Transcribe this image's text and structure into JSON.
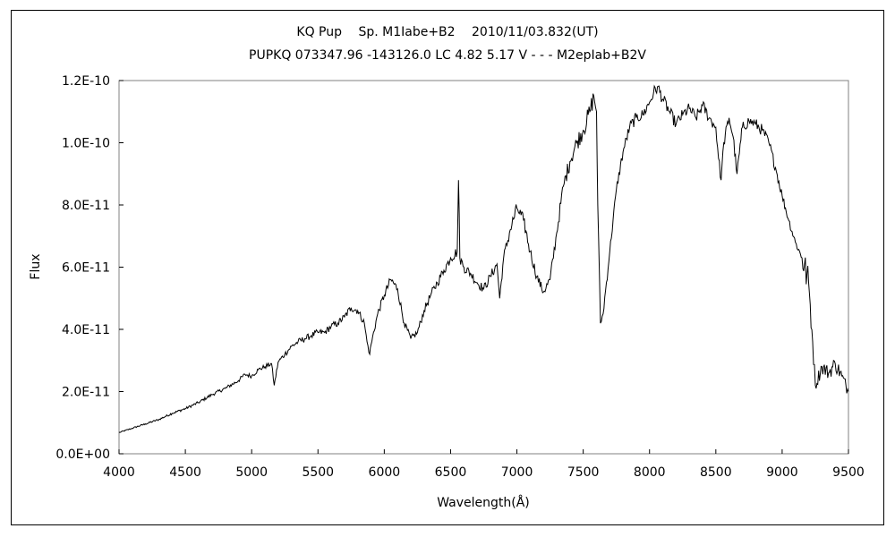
{
  "chart_data": {
    "type": "line",
    "title": "KQ Pup　 Sp. M1Iabe+B2　 2010/11/03.832(UT)",
    "subtitle": "PUPKQ 073347.96 -143126.0 LC 4.82 5.17 V - - - M2epIab+B2V",
    "xlabel": "Wavelength(Å)",
    "ylabel": "Flux",
    "xlim": [
      4000,
      9500
    ],
    "ylim": [
      0,
      1.2e-10
    ],
    "x_ticks": [
      4000,
      4500,
      5000,
      5500,
      6000,
      6500,
      7000,
      7500,
      8000,
      8500,
      9000,
      9500
    ],
    "x_tick_labels": [
      "4000",
      "4500",
      "5000",
      "5500",
      "6000",
      "6500",
      "7000",
      "7500",
      "8000",
      "8500",
      "9000",
      "9500"
    ],
    "y_ticks": [
      0,
      2e-11,
      4e-11,
      6e-11,
      8e-11,
      1e-10,
      1.2e-10
    ],
    "y_tick_labels": [
      "0.0E+00",
      "2.0E-11",
      "4.0E-11",
      "6.0E-11",
      "8.0E-11",
      "1.0E-10",
      "1.2E-10"
    ],
    "grid": false,
    "legend": "none",
    "line_color": "#000000",
    "series": [
      {
        "x": [
          4000,
          4100,
          4200,
          4300,
          4400,
          4500,
          4600,
          4700,
          4800,
          4900,
          4950,
          5000,
          5050,
          5100,
          5150,
          5170,
          5200,
          5250,
          5300,
          5350,
          5400,
          5450,
          5500,
          5550,
          5600,
          5650,
          5700,
          5750,
          5800,
          5850,
          5870,
          5890,
          5900,
          5950,
          6000,
          6050,
          6100,
          6150,
          6200,
          6250,
          6300,
          6350,
          6400,
          6450,
          6500,
          6550,
          6560,
          6570,
          6600,
          6650,
          6700,
          6750,
          6800,
          6850,
          6870,
          6900,
          6950,
          7000,
          7050,
          7100,
          7150,
          7200,
          7250,
          7300,
          7350,
          7400,
          7450,
          7500,
          7550,
          7580,
          7600,
          7610,
          7630,
          7650,
          7700,
          7750,
          7800,
          7850,
          7900,
          7950,
          8000,
          8030,
          8060,
          8100,
          8150,
          8200,
          8250,
          8300,
          8350,
          8400,
          8450,
          8500,
          8520,
          8540,
          8560,
          8600,
          8630,
          8660,
          8700,
          8750,
          8800,
          8850,
          8900,
          8950,
          9000,
          9050,
          9100,
          9150,
          9200,
          9230,
          9250,
          9300,
          9350,
          9400,
          9450,
          9500
        ],
        "values": [
          6.8e-12,
          8.2e-12,
          9.6e-12,
          1.1e-11,
          1.3e-11,
          1.45e-11,
          1.65e-11,
          1.9e-11,
          2.1e-11,
          2.35e-11,
          2.55e-11,
          2.5e-11,
          2.7e-11,
          2.8e-11,
          2.9e-11,
          2.2e-11,
          2.95e-11,
          3.2e-11,
          3.45e-11,
          3.6e-11,
          3.7e-11,
          3.8e-11,
          3.9e-11,
          3.9e-11,
          4.1e-11,
          4.2e-11,
          4.4e-11,
          4.7e-11,
          4.6e-11,
          4.2e-11,
          3.6e-11,
          3.2e-11,
          3.5e-11,
          4.5e-11,
          5.1e-11,
          5.6e-11,
          5.3e-11,
          4.2e-11,
          3.7e-11,
          3.9e-11,
          4.6e-11,
          5.1e-11,
          5.5e-11,
          5.9e-11,
          6.3e-11,
          6.5e-11,
          8.8e-11,
          6.3e-11,
          6e-11,
          5.8e-11,
          5.5e-11,
          5.3e-11,
          5.7e-11,
          6.1e-11,
          5e-11,
          6.3e-11,
          7.2e-11,
          7.9e-11,
          7.5e-11,
          6.5e-11,
          5.7e-11,
          5.2e-11,
          5.6e-11,
          7.1e-11,
          8.6e-11,
          9.4e-11,
          1e-10,
          1.04e-10,
          1.1e-10,
          1.15e-10,
          1.1e-10,
          8e-11,
          4.2e-11,
          4.5e-11,
          6.5e-11,
          8.5e-11,
          9.7e-11,
          1.05e-10,
          1.08e-10,
          1.09e-10,
          1.13e-10,
          1.16e-10,
          1.18e-10,
          1.14e-10,
          1.1e-10,
          1.06e-10,
          1.09e-10,
          1.11e-10,
          1.08e-10,
          1.12e-10,
          1.08e-10,
          1.05e-10,
          9.5e-11,
          8.8e-11,
          1e-10,
          1.08e-10,
          1.02e-10,
          9e-11,
          1.05e-10,
          1.07e-10,
          1.06e-10,
          1.04e-10,
          1e-10,
          9.2e-11,
          8.3e-11,
          7.5e-11,
          6.8e-11,
          6.3e-11,
          5.5e-11,
          3.6e-11,
          2.2e-11,
          2.8e-11,
          2.6e-11,
          2.9e-11,
          2.5e-11,
          2e-11
        ]
      }
    ]
  }
}
